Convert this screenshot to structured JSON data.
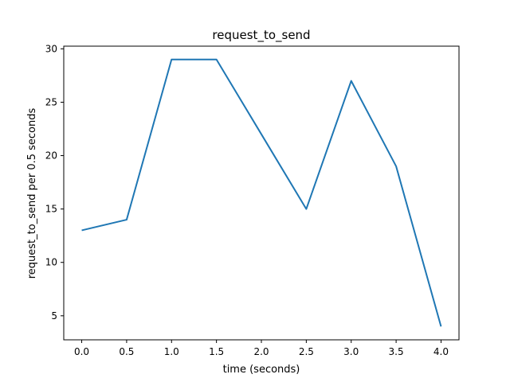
{
  "chart_data": {
    "type": "line",
    "title": "request_to_send",
    "xlabel": "time (seconds)",
    "ylabel": "request_to_send per 0.5 seconds",
    "x": [
      0.0,
      0.5,
      1.0,
      1.5,
      2.0,
      2.5,
      3.0,
      3.5,
      4.0
    ],
    "series": [
      {
        "values": [
          13,
          14,
          29,
          29,
          22,
          15,
          27,
          19,
          4
        ]
      }
    ],
    "xlim": [
      -0.2,
      4.2
    ],
    "ylim": [
      2.75,
      30.25
    ],
    "xticks": [
      0.0,
      0.5,
      1.0,
      1.5,
      2.0,
      2.5,
      3.0,
      3.5,
      4.0
    ],
    "xtick_labels": [
      "0.0",
      "0.5",
      "1.0",
      "1.5",
      "2.0",
      "2.5",
      "3.0",
      "3.5",
      "4.0"
    ],
    "yticks": [
      5,
      10,
      15,
      20,
      25,
      30
    ],
    "ytick_labels": [
      "5",
      "10",
      "15",
      "20",
      "25",
      "30"
    ],
    "grid": false,
    "line_color": "#1f77b4"
  }
}
